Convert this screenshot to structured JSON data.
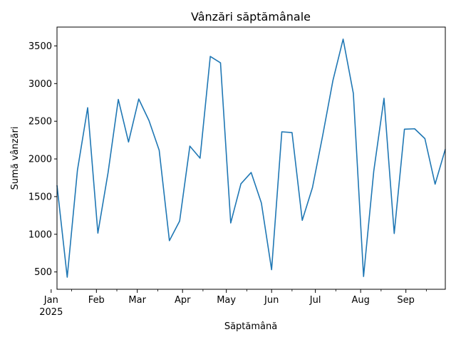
{
  "chart_data": {
    "type": "line",
    "title": "Vânzări săptămânale",
    "xlabel": "Săptămână",
    "ylabel": "Sumă vânzări",
    "grid": false,
    "legend": "none",
    "line_color": "#1f77b4",
    "x_range": [
      "2025-01-05",
      "2025-09-28"
    ],
    "ylim": [
      270,
      3750
    ],
    "y_ticks": [
      500,
      1000,
      1500,
      2000,
      2500,
      3000,
      3500
    ],
    "x_major_ticks": [
      {
        "date": "2025-01-01",
        "label": "Jan",
        "sublabel": "2025"
      },
      {
        "date": "2025-02-01",
        "label": "Feb",
        "sublabel": ""
      },
      {
        "date": "2025-03-01",
        "label": "Mar",
        "sublabel": ""
      },
      {
        "date": "2025-04-01",
        "label": "Apr",
        "sublabel": ""
      },
      {
        "date": "2025-05-01",
        "label": "May",
        "sublabel": ""
      },
      {
        "date": "2025-06-01",
        "label": "Jun",
        "sublabel": ""
      },
      {
        "date": "2025-07-01",
        "label": "Jul",
        "sublabel": ""
      },
      {
        "date": "2025-08-01",
        "label": "Aug",
        "sublabel": ""
      },
      {
        "date": "2025-09-01",
        "label": "Sep",
        "sublabel": ""
      }
    ],
    "x": [
      "2025-01-05",
      "2025-01-12",
      "2025-01-19",
      "2025-01-26",
      "2025-02-02",
      "2025-02-09",
      "2025-02-16",
      "2025-02-23",
      "2025-03-02",
      "2025-03-09",
      "2025-03-16",
      "2025-03-23",
      "2025-03-30",
      "2025-04-06",
      "2025-04-13",
      "2025-04-20",
      "2025-04-27",
      "2025-05-04",
      "2025-05-11",
      "2025-05-18",
      "2025-05-25",
      "2025-06-01",
      "2025-06-08",
      "2025-06-15",
      "2025-06-22",
      "2025-06-29",
      "2025-07-06",
      "2025-07-13",
      "2025-07-20",
      "2025-07-27",
      "2025-08-03",
      "2025-08-10",
      "2025-08-17",
      "2025-08-24",
      "2025-08-31",
      "2025-09-07",
      "2025-09-14",
      "2025-09-21",
      "2025-09-28"
    ],
    "values": [
      1650,
      430,
      1850,
      2680,
      1015,
      1820,
      2790,
      2225,
      2795,
      2510,
      2115,
      915,
      1175,
      2170,
      2010,
      3360,
      3275,
      1150,
      1670,
      1820,
      1415,
      530,
      2360,
      2350,
      1185,
      1620,
      2310,
      3040,
      3590,
      2870,
      440,
      1840,
      2805,
      1010,
      2395,
      2400,
      2270,
      1665,
      2130
    ]
  }
}
